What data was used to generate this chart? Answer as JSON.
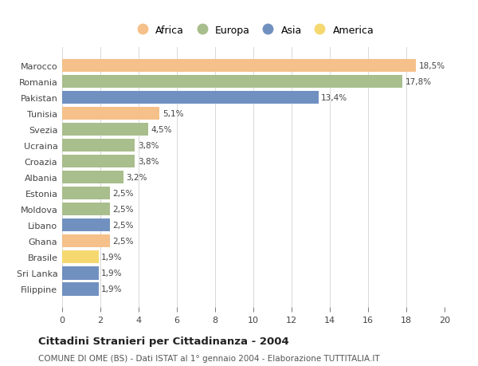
{
  "countries": [
    "Filippine",
    "Sri Lanka",
    "Brasile",
    "Ghana",
    "Libano",
    "Moldova",
    "Estonia",
    "Albania",
    "Croazia",
    "Ucraina",
    "Svezia",
    "Tunisia",
    "Pakistan",
    "Romania",
    "Marocco"
  ],
  "values": [
    1.9,
    1.9,
    1.9,
    2.5,
    2.5,
    2.5,
    2.5,
    3.2,
    3.8,
    3.8,
    4.5,
    5.1,
    13.4,
    17.8,
    18.5
  ],
  "labels": [
    "1,9%",
    "1,9%",
    "1,9%",
    "2,5%",
    "2,5%",
    "2,5%",
    "2,5%",
    "3,2%",
    "3,8%",
    "3,8%",
    "4,5%",
    "5,1%",
    "13,4%",
    "17,8%",
    "18,5%"
  ],
  "continents": [
    "Asia",
    "Asia",
    "America",
    "Africa",
    "Asia",
    "Europa",
    "Europa",
    "Europa",
    "Europa",
    "Europa",
    "Europa",
    "Africa",
    "Asia",
    "Europa",
    "Africa"
  ],
  "continent_colors": {
    "Africa": "#F5C08A",
    "Europa": "#A8BE8C",
    "Asia": "#7090C0",
    "America": "#F5D870"
  },
  "legend_order": [
    "Africa",
    "Europa",
    "Asia",
    "America"
  ],
  "title": "Cittadini Stranieri per Cittadinanza - 2004",
  "subtitle": "COMUNE DI OME (BS) - Dati ISTAT al 1° gennaio 2004 - Elaborazione TUTTITALIA.IT",
  "xlim": [
    0,
    20
  ],
  "xticks": [
    0,
    2,
    4,
    6,
    8,
    10,
    12,
    14,
    16,
    18,
    20
  ],
  "background_color": "#ffffff",
  "grid_color": "#d8d8d8",
  "bar_height": 0.82
}
